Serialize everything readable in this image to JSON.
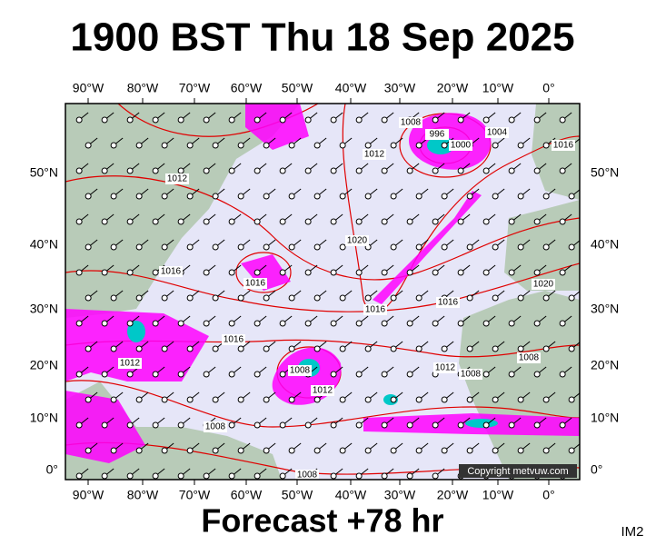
{
  "header": {
    "title": "1900 BST Thu 18 Sep 2025"
  },
  "map": {
    "longitude_labels": [
      "90°W",
      "80°W",
      "70°W",
      "60°W",
      "50°W",
      "40°W",
      "30°W",
      "20°W",
      "10°W",
      "0°"
    ],
    "latitude_labels": [
      "50°N",
      "40°N",
      "30°N",
      "20°N",
      "10°N",
      "0°"
    ],
    "isobar_labels": [
      "1012",
      "1016",
      "1016",
      "1016",
      "1016",
      "1016",
      "1012",
      "1008",
      "1008",
      "1008",
      "1008",
      "1020",
      "1020",
      "1012",
      "1008",
      "996",
      "1000",
      "1004",
      "1016",
      "1008",
      "1012",
      "1012"
    ],
    "copyright": "Copyright metvuw.com"
  },
  "footer": {
    "forecast": "Forecast +78 hr",
    "code": "IM2"
  }
}
